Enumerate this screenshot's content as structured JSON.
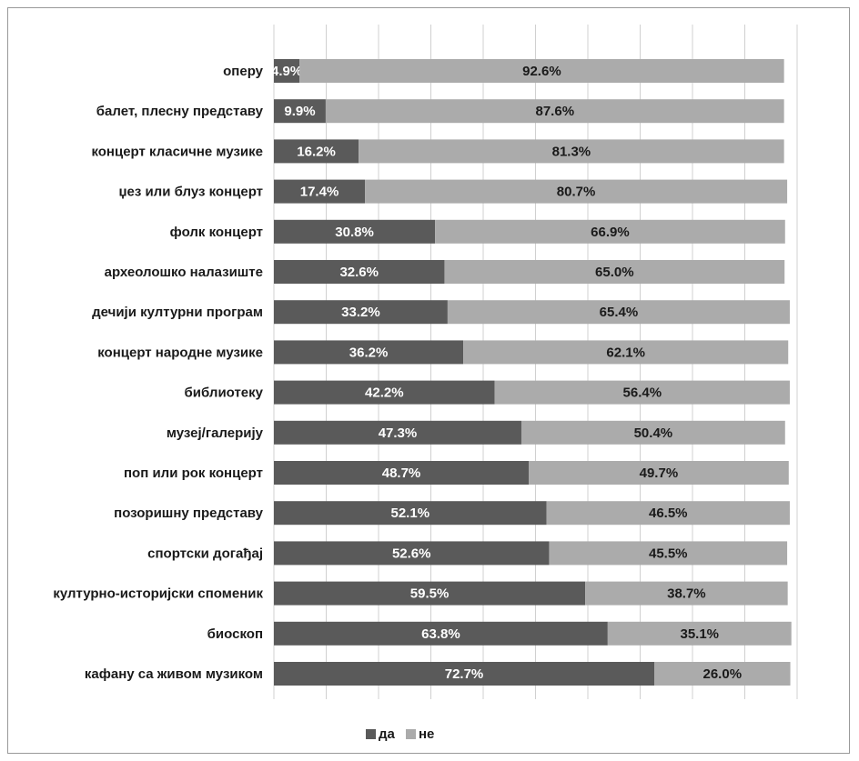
{
  "chart_data": {
    "type": "bar",
    "orientation": "horizontal",
    "stacked": true,
    "title": "",
    "xlabel": "",
    "ylabel": "",
    "xlim": [
      0,
      100
    ],
    "grid": true,
    "legend_position": "bottom",
    "categories": [
      "оперу",
      "балет, плесну представу",
      "концерт класичне музике",
      "џез или блуз концерт",
      "фолк концерт",
      "археолошко налазиште",
      "дечији културни програм",
      "концерт народне музике",
      "библиотеку",
      "музеј/галерију",
      "поп или рок концерт",
      "позоришну представу",
      "спортски догађај",
      "културно-историјски споменик",
      "биоскоп",
      "кафану са живом музиком"
    ],
    "series": [
      {
        "name": "да",
        "color": "#5a5a5a",
        "label_color": "#ffffff",
        "values": [
          4.9,
          9.9,
          16.2,
          17.4,
          30.8,
          32.6,
          33.2,
          36.2,
          42.2,
          47.3,
          48.7,
          52.1,
          52.6,
          59.5,
          63.8,
          72.7
        ],
        "labels": [
          "4.9%",
          "9.9%",
          "16.2%",
          "17.4%",
          "30.8%",
          "32.6%",
          "33.2%",
          "36.2%",
          "42.2%",
          "47.3%",
          "48.7%",
          "52.1%",
          "52.6%",
          "59.5%",
          "63.8%",
          "72.7%"
        ]
      },
      {
        "name": "не",
        "color": "#ababab",
        "label_color": "#1a1a1a",
        "values": [
          92.6,
          87.6,
          81.3,
          80.7,
          66.9,
          65.0,
          65.4,
          62.1,
          56.4,
          50.4,
          49.7,
          46.5,
          45.5,
          38.7,
          35.1,
          26.0
        ],
        "labels": [
          "92.6%",
          "87.6%",
          "81.3%",
          "80.7%",
          "66.9%",
          "65.0%",
          "65.4%",
          "62.1%",
          "56.4%",
          "50.4%",
          "49.7%",
          "46.5%",
          "45.5%",
          "38.7%",
          "35.1%",
          "26.0%"
        ]
      }
    ]
  }
}
